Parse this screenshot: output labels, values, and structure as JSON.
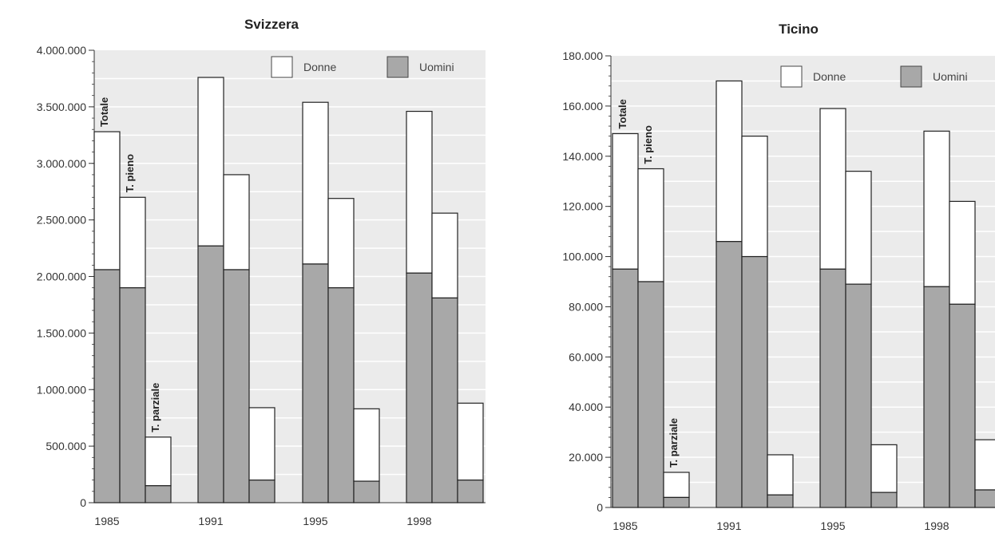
{
  "chart_data": [
    {
      "type": "bar",
      "stacked": true,
      "title": "Svizzera",
      "ylim": [
        0,
        4000000
      ],
      "yticks": [
        "0",
        "500.000",
        "1.000.000",
        "1.500.000",
        "2.000.000",
        "2.500.000",
        "3.000.000",
        "3.500.000",
        "4.000.000"
      ],
      "ytick_values": [
        0,
        500000,
        1000000,
        1500000,
        2000000,
        2500000,
        3000000,
        3500000,
        4000000
      ],
      "groups": [
        "1985",
        "1991",
        "1995",
        "1998"
      ],
      "bar_labels": [
        "Totale",
        "T. pieno",
        "T. parziale"
      ],
      "legend": [
        "Donne",
        "Uomini"
      ],
      "legend_position": "top-right",
      "colors": {
        "Donne": "#ffffff",
        "Uomini": "#a8a8a8",
        "background": "#ebebeb",
        "grid": "#ffffff"
      },
      "series": [
        {
          "name": "Uomini",
          "values": [
            [
              2060000,
              1900000,
              150000
            ],
            [
              2270000,
              2060000,
              200000
            ],
            [
              2110000,
              1900000,
              190000
            ],
            [
              2030000,
              1810000,
              200000
            ]
          ]
        },
        {
          "name": "Donne",
          "values": [
            [
              1220000,
              800000,
              430000
            ],
            [
              1490000,
              840000,
              640000
            ],
            [
              1430000,
              790000,
              640000
            ],
            [
              1430000,
              750000,
              680000
            ]
          ]
        }
      ],
      "totals": [
        [
          3280000,
          2700000,
          580000
        ],
        [
          3760000,
          2900000,
          840000
        ],
        [
          3540000,
          2690000,
          830000
        ],
        [
          3460000,
          2560000,
          880000
        ]
      ]
    },
    {
      "type": "bar",
      "stacked": true,
      "title": "Ticino",
      "ylim": [
        0,
        180000
      ],
      "yticks": [
        "0",
        "20.000",
        "40.000",
        "60.000",
        "80.000",
        "100.000",
        "120.000",
        "140.000",
        "160.000",
        "180.000"
      ],
      "ytick_values": [
        0,
        20000,
        40000,
        60000,
        80000,
        100000,
        120000,
        140000,
        160000,
        180000
      ],
      "groups": [
        "1985",
        "1991",
        "1995",
        "1998"
      ],
      "bar_labels": [
        "Totale",
        "T. pieno",
        "T. parziale"
      ],
      "legend": [
        "Donne",
        "Uomini"
      ],
      "legend_position": "top-right",
      "colors": {
        "Donne": "#ffffff",
        "Uomini": "#a8a8a8",
        "background": "#ebebeb",
        "grid": "#ffffff"
      },
      "series": [
        {
          "name": "Uomini",
          "values": [
            [
              95000,
              90000,
              4000
            ],
            [
              106000,
              100000,
              5000
            ],
            [
              95000,
              89000,
              6000
            ],
            [
              88000,
              81000,
              7000
            ]
          ]
        },
        {
          "name": "Donne",
          "values": [
            [
              54000,
              45000,
              10000
            ],
            [
              64000,
              48000,
              16000
            ],
            [
              64000,
              45000,
              19000
            ],
            [
              62000,
              41000,
              20000
            ]
          ]
        }
      ],
      "totals": [
        [
          149000,
          135000,
          14000
        ],
        [
          170000,
          148000,
          21000
        ],
        [
          159000,
          134000,
          25000
        ],
        [
          150000,
          122000,
          27000
        ]
      ]
    }
  ]
}
